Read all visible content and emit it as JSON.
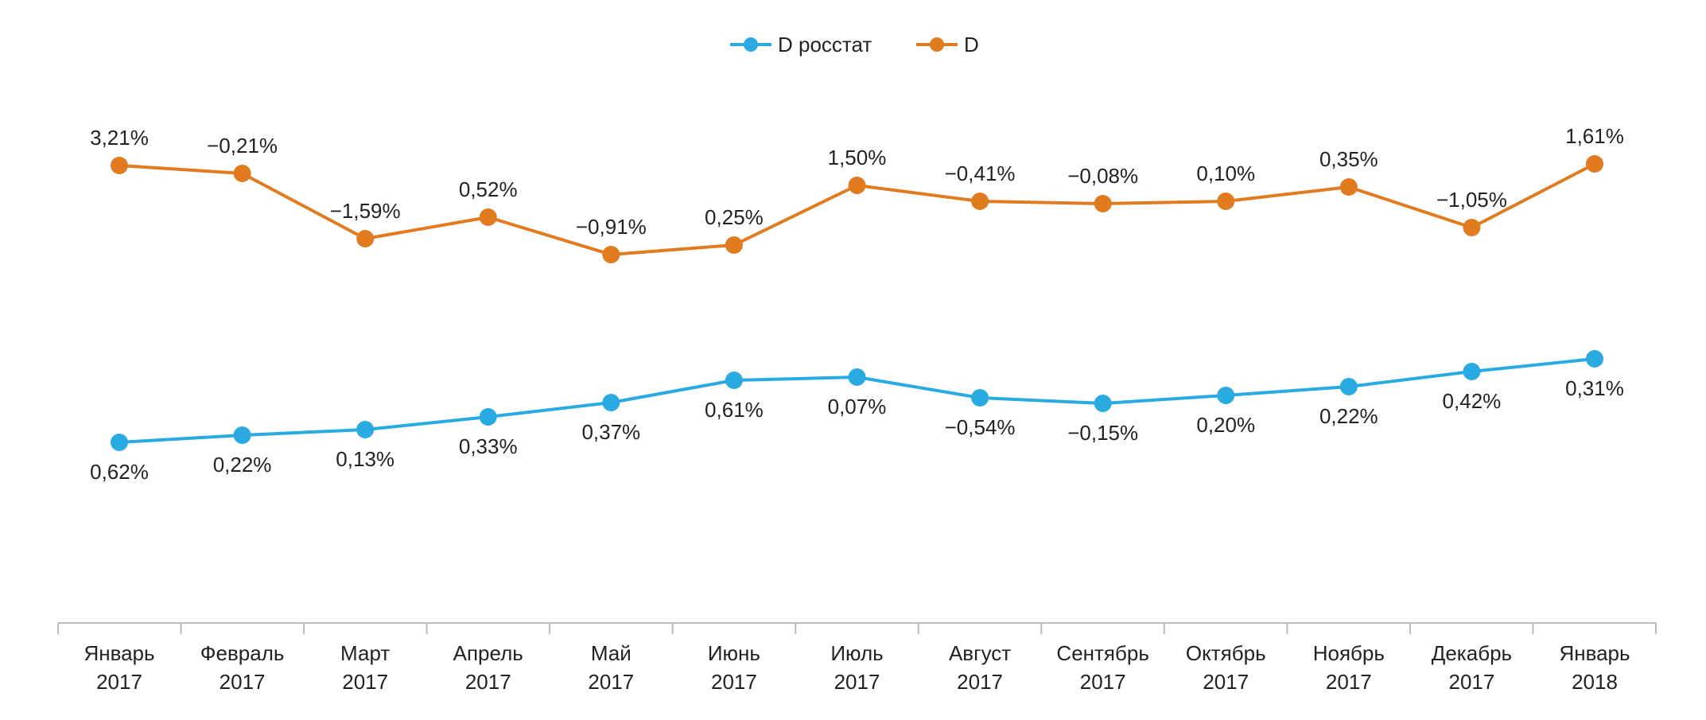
{
  "chart_data": {
    "type": "line",
    "title": "",
    "xlabel": "",
    "ylabel": "",
    "legend": {
      "placement": "top-center",
      "entries": [
        "D росстат",
        "D"
      ]
    },
    "categories": [
      [
        "Январь",
        "2017"
      ],
      [
        "Февраль",
        "2017"
      ],
      [
        "Март",
        "2017"
      ],
      [
        "Апрель",
        "2017"
      ],
      [
        "Май",
        "2017"
      ],
      [
        "Июнь",
        "2017"
      ],
      [
        "Июль",
        "2017"
      ],
      [
        "Август",
        "2017"
      ],
      [
        "Сентябрь",
        "2017"
      ],
      [
        "Октябрь",
        "2017"
      ],
      [
        "Ноябрь",
        "2017"
      ],
      [
        "Декабрь",
        "2017"
      ],
      [
        "Январь",
        "2018"
      ]
    ],
    "series": [
      {
        "name": "D росстат",
        "color": "#29ABE2",
        "labels": [
          "0,62%",
          "0,22%",
          "0,13%",
          "0,33%",
          "0,37%",
          "0,61%",
          "0,07%",
          "−0,54%",
          "−0,15%",
          "0,20%",
          "0,22%",
          "0,42%",
          "0,31%"
        ],
        "label_position": "below"
      },
      {
        "name": "D",
        "color": "#E07B20",
        "labels": [
          "3,21%",
          "−0,21%",
          "−1,59%",
          "0,52%",
          "−0,91%",
          "0,25%",
          "1,50%",
          "−0,41%",
          "−0,08%",
          "0,10%",
          "0,35%",
          "−1,05%",
          "1,61%"
        ],
        "label_position": "above"
      }
    ],
    "grid": false,
    "y_axis_visible": false
  }
}
